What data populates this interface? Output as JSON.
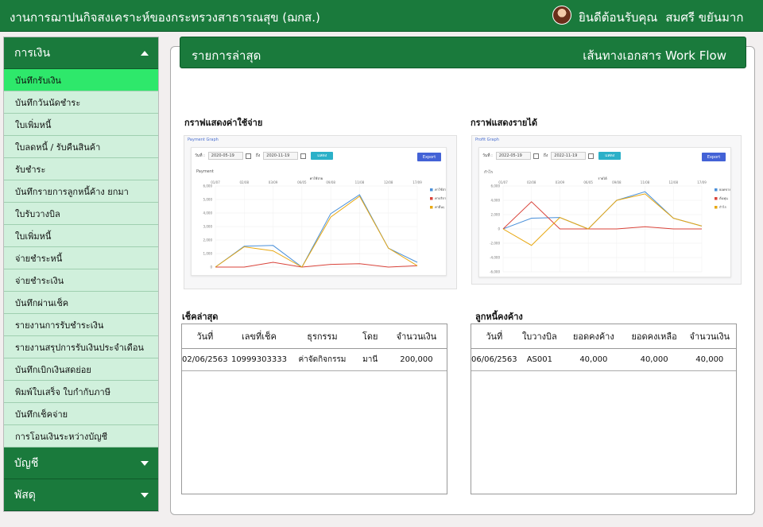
{
  "app": {
    "title": "งานการฌาปนกิจสงเคราะห์ของกระทรวงสาธารณสุข (ฌกส.)"
  },
  "user": {
    "greeting": "ยินดีต้อนรับคุณ",
    "name": "สมศรี ขยันมาก"
  },
  "sidebar": {
    "sections": [
      {
        "label": "การเงิน",
        "expanded": true
      },
      {
        "label": "บัญชี",
        "expanded": false
      },
      {
        "label": "พัสดุ",
        "expanded": false
      }
    ],
    "items": [
      "บันทึกรับเงิน",
      "บันทึกวันนัดชำระ",
      "ใบเพิ่มหนี้",
      "ใบลดหนี้ / รับคืนสินค้า",
      "รับชำระ",
      "บันทึกรายการลูกหนี้ค้าง ยกมา",
      "ใบรับวางบิล",
      "ใบเพิ่มหนี้",
      "จ่ายชำระหนี้",
      "จ่ายชำระเงิน",
      "บันทึกผ่านเช็ค",
      "รายงานการรับชำระเงิน",
      "รายงานสรุปการรับเงินประจำเดือน",
      "บันทึกเบิกเงินสดย่อย",
      "พิมพ์ใบเสร็จ ใบกำกับภาษี",
      "บันทึกเช็คจ่าย",
      "การโอนเงินระหว่างบัญชี"
    ],
    "active_index": 0
  },
  "header": {
    "title": "รายการล่าสุด",
    "link": "เส้นทางเอกสาร Work Flow"
  },
  "charts": {
    "expense": {
      "title": "กราฟแสดงค่าใช้จ่าย",
      "card_header": "Payment Graph",
      "date_label_from": "วันที่ :",
      "date_from": "2020-05-19",
      "date_label_to": "ถึง",
      "date_to": "2020-11-19",
      "go_label": "แสดง",
      "export_label": "Export",
      "sub_label": "Payment"
    },
    "income": {
      "title": "กราฟแสดงรายได้",
      "card_header": "Profit Graph",
      "date_label_from": "วันที่ :",
      "date_from": "2022-05-19",
      "date_label_to": "ถึง",
      "date_to": "2022-11-19",
      "go_label": "แสดง",
      "export_label": "Export",
      "sub_label": "กำไร"
    }
  },
  "chart_data": [
    {
      "type": "line",
      "title": "ค่าใช้จ่าย",
      "categories": [
        "01/07",
        "02/08",
        "03/09",
        "06/05",
        "09/08",
        "11/08",
        "12/08",
        "17/09"
      ],
      "ylim": [
        0,
        6000
      ],
      "yticks": [
        0,
        1000,
        2000,
        3000,
        4000,
        5000,
        6000
      ],
      "legend_position": "right",
      "series": [
        {
          "name": "ค่าใช้จ่ายรวม",
          "color": "#4a90d9",
          "values": [
            0,
            1550,
            1600,
            0,
            3950,
            5350,
            1400,
            350
          ]
        },
        {
          "name": "ค่าบริการ",
          "color": "#d9433a",
          "values": [
            0,
            0,
            350,
            0,
            200,
            250,
            0,
            100
          ]
        },
        {
          "name": "ค่าอื่นๆ",
          "color": "#e8a812",
          "values": [
            0,
            1500,
            1200,
            0,
            3700,
            5250,
            1400,
            100
          ]
        }
      ]
    },
    {
      "type": "line",
      "title": "รายได้",
      "categories": [
        "01/07",
        "02/08",
        "03/09",
        "06/05",
        "09/08",
        "11/08",
        "12/08",
        "17/09"
      ],
      "ylim": [
        -6000,
        6000
      ],
      "yticks": [
        -6000,
        -4000,
        -2000,
        0,
        2000,
        4000,
        6000
      ],
      "legend_position": "right",
      "series": [
        {
          "name": "ยอดขาย",
          "color": "#4a90d9",
          "values": [
            0,
            1500,
            1600,
            0,
            4000,
            5200,
            1500,
            400
          ]
        },
        {
          "name": "ต้นทุน",
          "color": "#d9433a",
          "values": [
            0,
            3800,
            0,
            0,
            0,
            300,
            0,
            0
          ]
        },
        {
          "name": "กำไร",
          "color": "#e8a812",
          "values": [
            0,
            -2300,
            1600,
            0,
            4000,
            4900,
            1500,
            400
          ]
        }
      ]
    }
  ],
  "cheques": {
    "title": "เช็คล่าสุด",
    "columns": [
      "วันที่",
      "เลขที่เช็ค",
      "ธุรกรรม",
      "โดย",
      "จำนวนเงิน"
    ],
    "rows": [
      [
        "02/06/2563",
        "10999303333",
        "ค่าจัดกิจกรรม",
        "มานี",
        "200,000"
      ]
    ]
  },
  "debtors": {
    "title": "ลูกหนี้คงค้าง",
    "columns": [
      "วันที่",
      "ใบวางบิล",
      "ยอดคงค้าง",
      "ยอดคงเหลือ",
      "จำนวนเงิน"
    ],
    "rows": [
      [
        "06/06/2563",
        "AS001",
        "40,000",
        "40,000",
        "40,000"
      ]
    ]
  }
}
